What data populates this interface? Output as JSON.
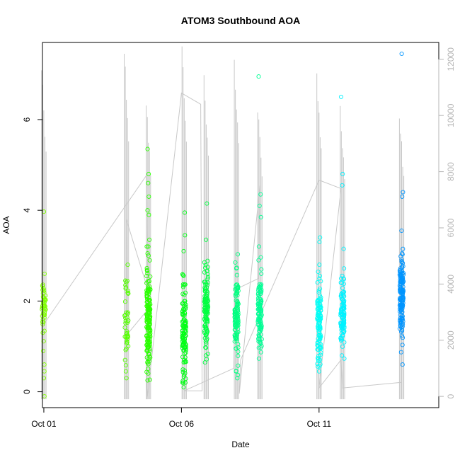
{
  "chart_data": {
    "type": "scatter",
    "title": "ATOM3 Southbound AOA",
    "xlabel": "Date",
    "ylabel": "AOA",
    "x_ticks": [
      {
        "label": "Oct 01",
        "day": 1
      },
      {
        "label": "Oct 06",
        "day": 6
      },
      {
        "label": "Oct 11",
        "day": 11
      }
    ],
    "xlim_days": [
      0.95,
      15.35
    ],
    "ylim": [
      -0.35,
      7.7
    ],
    "y_ticks": [
      0,
      2,
      4,
      6
    ],
    "y2_ticks": [
      0,
      2000,
      4000,
      6000,
      8000,
      10000,
      12000
    ],
    "y2lim": [
      -400,
      12600
    ],
    "grid": false,
    "legend": "none",
    "colors": {
      "points_start": "#7fff00",
      "points_mid": "#00ff66",
      "points_cyan": "#00ffff",
      "points_end": "#1e90ff",
      "secondary_line": "#c8c8c8",
      "right_axis": "#b5b5b5"
    },
    "clusters": [
      {
        "day": 1.0,
        "center": 1.9,
        "spread": 0.3,
        "n": 45,
        "hue": 90,
        "outliers": [
          3.97,
          -0.1,
          0.3,
          0.45,
          0.6,
          0.9,
          1.3,
          2.6
        ]
      },
      {
        "day": 4.0,
        "center": 1.6,
        "spread": 0.45,
        "n": 40,
        "hue": 100,
        "outliers": [
          0.3,
          0.45,
          0.7,
          2.45,
          2.8
        ]
      },
      {
        "day": 4.8,
        "center": 1.6,
        "spread": 0.55,
        "n": 170,
        "hue": 110,
        "outliers": [
          5.35,
          4.8,
          4.6,
          4.3,
          4.0,
          3.9,
          3.35,
          3.05,
          0.25
        ]
      },
      {
        "day": 6.1,
        "center": 1.45,
        "spread": 0.55,
        "n": 110,
        "hue": 125,
        "outliers": [
          3.95,
          3.45,
          3.1,
          0.1
        ]
      },
      {
        "day": 6.9,
        "center": 1.8,
        "spread": 0.45,
        "n": 120,
        "hue": 135,
        "outliers": [
          4.15,
          3.35,
          0.8
        ]
      },
      {
        "day": 8.0,
        "center": 1.65,
        "spread": 0.45,
        "n": 110,
        "hue": 150,
        "outliers": [
          2.85,
          0.3,
          0.45
        ]
      },
      {
        "day": 8.85,
        "center": 1.7,
        "spread": 0.4,
        "n": 110,
        "hue": 155,
        "outliers": [
          6.95,
          4.35,
          4.1,
          3.85,
          3.2,
          2.9
        ]
      },
      {
        "day": 11.0,
        "center": 1.5,
        "spread": 0.45,
        "n": 110,
        "hue": 178,
        "outliers": [
          3.4,
          3.3,
          2.8,
          0.45
        ]
      },
      {
        "day": 11.85,
        "center": 1.75,
        "spread": 0.35,
        "n": 100,
        "hue": 183,
        "outliers": [
          6.5,
          4.8,
          4.55,
          3.15,
          0.8
        ]
      },
      {
        "day": 14.0,
        "center": 2.05,
        "spread": 0.45,
        "n": 150,
        "hue": 205,
        "outliers": [
          7.45,
          4.4,
          4.3,
          3.55,
          3.15,
          0.6
        ]
      }
    ],
    "secondary_spikes": [
      {
        "day": 1.0,
        "max": 12000
      },
      {
        "day": 4.0,
        "max": 12600
      },
      {
        "day": 4.8,
        "max": 10800
      },
      {
        "day": 6.1,
        "max": 12600
      },
      {
        "day": 6.9,
        "max": 11500
      },
      {
        "day": 8.0,
        "max": 12200
      },
      {
        "day": 8.85,
        "max": 10600
      },
      {
        "day": 11.0,
        "max": 11800
      },
      {
        "day": 11.85,
        "max": 10600
      },
      {
        "day": 14.0,
        "max": 10400
      }
    ],
    "secondary_path": [
      [
        1.0,
        2500
      ],
      [
        1.02,
        2600
      ],
      [
        4.75,
        7900
      ],
      [
        4.78,
        3800
      ],
      [
        4.0,
        6300
      ],
      [
        4.02,
        2200
      ],
      [
        4.7,
        3000
      ],
      [
        4.75,
        -100
      ],
      [
        6.0,
        10800
      ],
      [
        6.7,
        10400
      ],
      [
        6.75,
        200
      ],
      [
        6.1,
        200
      ],
      [
        7.9,
        1000
      ],
      [
        7.95,
        3800
      ],
      [
        8.8,
        4200
      ],
      [
        8.85,
        7500
      ],
      [
        8.1,
        100
      ],
      [
        8.15,
        1300
      ],
      [
        11.0,
        7700
      ],
      [
        11.8,
        7400
      ],
      [
        11.0,
        300
      ],
      [
        11.8,
        1300
      ],
      [
        11.85,
        300
      ],
      [
        14.0,
        500
      ]
    ]
  }
}
